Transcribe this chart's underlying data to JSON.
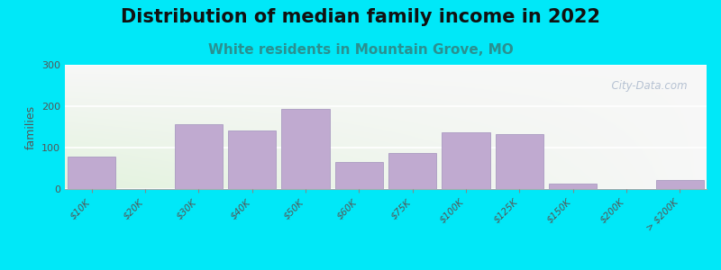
{
  "title": "Distribution of median family income in 2022",
  "subtitle": "White residents in Mountain Grove, MO",
  "ylabel": "families",
  "categories": [
    "$10K",
    "$20K",
    "$30K",
    "$40K",
    "$50K",
    "$60K",
    "$75K",
    "$100K",
    "$125K",
    "$150K",
    "$200K",
    "> $200K"
  ],
  "values": [
    78,
    0,
    157,
    142,
    193,
    65,
    87,
    137,
    133,
    13,
    0,
    22
  ],
  "bar_color": "#c0aad0",
  "bar_edge_color": "#a090bb",
  "ylim": [
    0,
    300
  ],
  "yticks": [
    0,
    100,
    200,
    300
  ],
  "background_outer": "#00e8f8",
  "title_fontsize": 15,
  "subtitle_fontsize": 11,
  "subtitle_color": "#2a9090",
  "watermark": "  City-Data.com",
  "watermark_color": "#aab8cc",
  "grid_color": "#ffffff",
  "tick_label_color": "#555555"
}
